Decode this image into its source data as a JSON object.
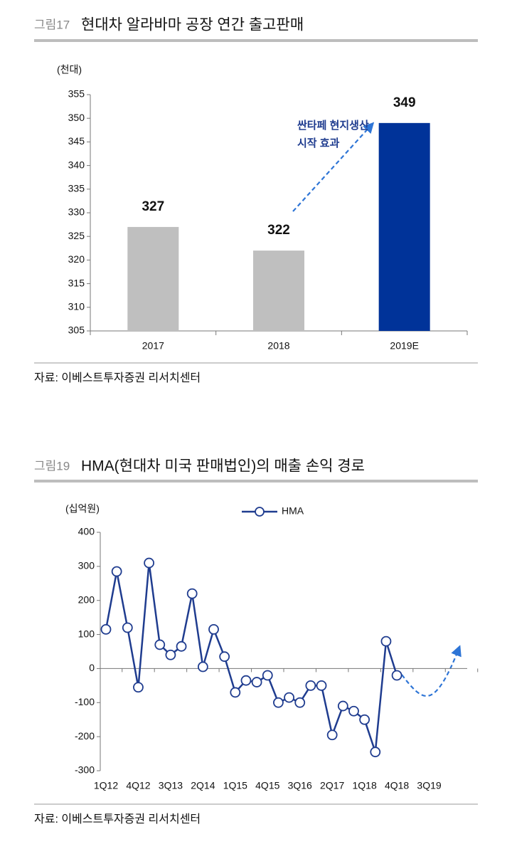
{
  "chart_data": [
    {
      "type": "bar",
      "label": "그림17",
      "title": "현대차 알라바마 공장 연간 출고판매",
      "unit_label": "(천대)",
      "categories": [
        "2017",
        "2018",
        "2019E"
      ],
      "values": [
        327,
        322,
        349
      ],
      "colors": [
        "#bfbfbf",
        "#bfbfbf",
        "#003399"
      ],
      "ylim": [
        305,
        355
      ],
      "yticks": [
        305,
        310,
        315,
        320,
        325,
        330,
        335,
        340,
        345,
        350,
        355
      ],
      "annotation": [
        "싼타페 현지생산",
        "시작 효과"
      ],
      "source": "자료: 이베스트투자증권 리서치센터"
    },
    {
      "type": "line",
      "label": "그림19",
      "title": "HMA(현대차 미국 판매법인)의 매출 손익 경로",
      "unit_label": "(십억원)",
      "categories": [
        "1Q12",
        null,
        null,
        "4Q12",
        null,
        null,
        "3Q13",
        null,
        null,
        "2Q14",
        null,
        null,
        "1Q15",
        null,
        null,
        "4Q15",
        null,
        null,
        "3Q16",
        null,
        null,
        "2Q17",
        null,
        null,
        "1Q18",
        null,
        null,
        "4Q18",
        null,
        null,
        "3Q19",
        null,
        null,
        null
      ],
      "series": [
        {
          "name": "HMA",
          "color": "#1f3c8f",
          "values": [
            115,
            285,
            120,
            -55,
            310,
            70,
            40,
            65,
            220,
            5,
            115,
            35,
            -70,
            -35,
            -40,
            -20,
            -100,
            -85,
            -100,
            -50,
            -50,
            -195,
            -110,
            -125,
            -150,
            -245,
            80,
            -20,
            null,
            null,
            null,
            null,
            null,
            null
          ]
        }
      ],
      "ylim": [
        -300,
        400
      ],
      "yticks": [
        -300,
        -200,
        -100,
        0,
        100,
        200,
        300,
        400
      ],
      "source": "자료: 이베스트투자증권 리서치센터"
    }
  ]
}
